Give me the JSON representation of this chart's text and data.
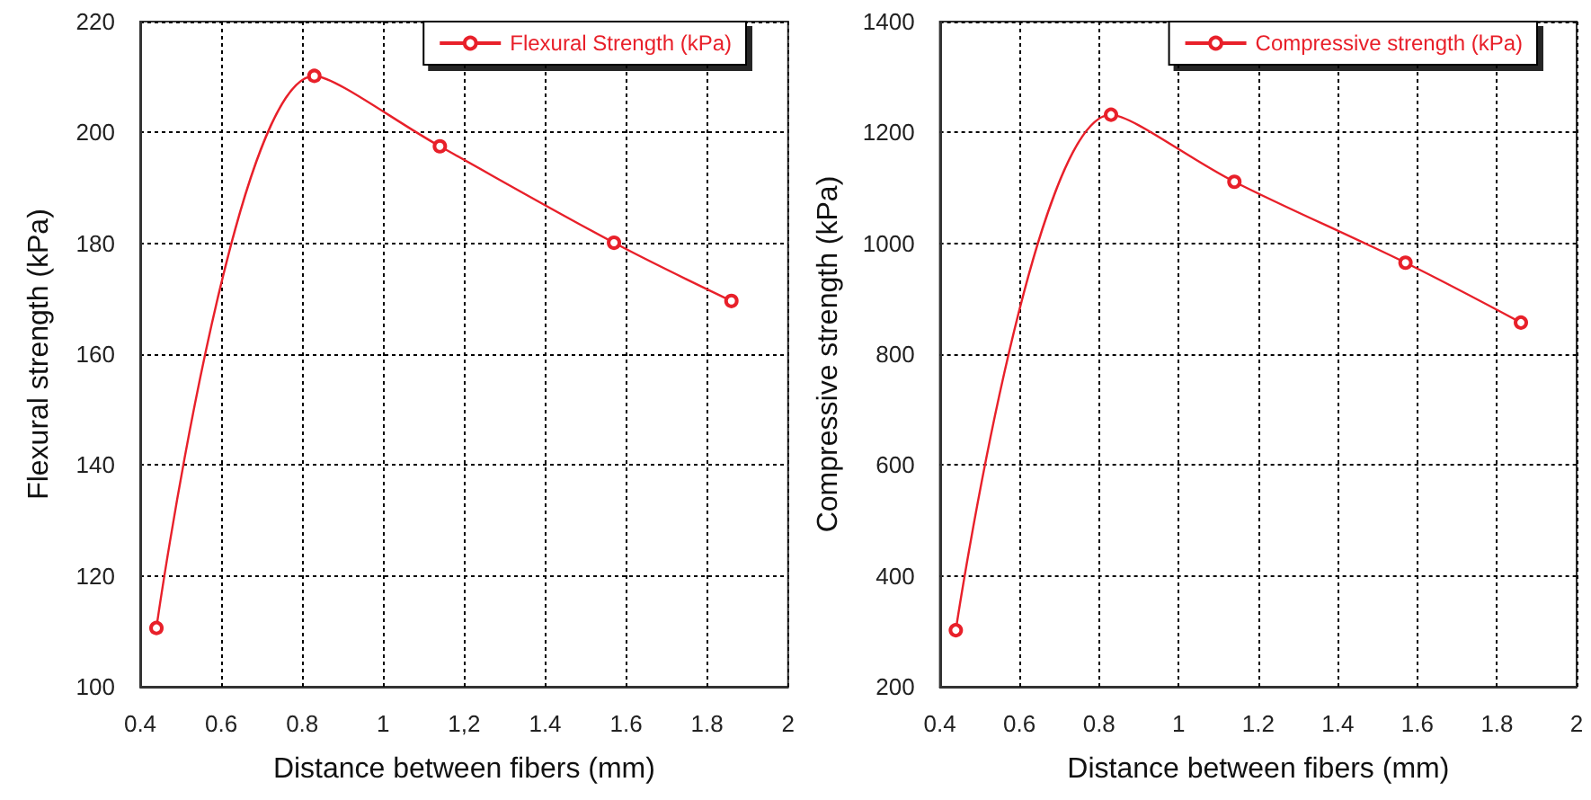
{
  "chart_data": [
    {
      "type": "line",
      "xlabel": "Distance between fibers (mm)",
      "ylabel": "Flexural strength (kPa)",
      "x": [
        0.44,
        0.83,
        1.14,
        1.57,
        1.86
      ],
      "series": [
        {
          "name": "Flexural Strength (kPa)",
          "color": "#e8202a",
          "values": [
            110.6,
            210.2,
            197.5,
            180.1,
            169.6
          ]
        }
      ],
      "xlim": [
        0.4,
        2
      ],
      "xticks": [
        0.4,
        0.6,
        0.8,
        1,
        {
          "value": 1.2,
          "label": "1,2"
        },
        1.4,
        1.6,
        1.8,
        2
      ],
      "ylim": [
        100,
        220
      ],
      "yticks": [
        100,
        120,
        140,
        160,
        180,
        200,
        220
      ],
      "grid": true,
      "legend": "top right",
      "marker": "circle",
      "line_style": "solid"
    },
    {
      "type": "line",
      "xlabel": "Distance between fibers (mm)",
      "ylabel": "Compressive strength (kPa)",
      "x": [
        0.44,
        0.83,
        1.14,
        1.57,
        1.86
      ],
      "series": [
        {
          "name": "Compressive strength (kPa)",
          "color": "#e8202a",
          "values": [
            302,
            1232,
            1111,
            965,
            857
          ]
        }
      ],
      "xlim": [
        0.4,
        2
      ],
      "xticks": [
        0.4,
        0.6,
        0.8,
        1,
        1.2,
        1.4,
        1.6,
        1.8,
        2
      ],
      "ylim": [
        200,
        1400
      ],
      "yticks": [
        200,
        400,
        600,
        800,
        1000,
        1200,
        1400
      ],
      "grid": true,
      "legend": "top right",
      "marker": "circle",
      "line_style": "solid"
    }
  ]
}
